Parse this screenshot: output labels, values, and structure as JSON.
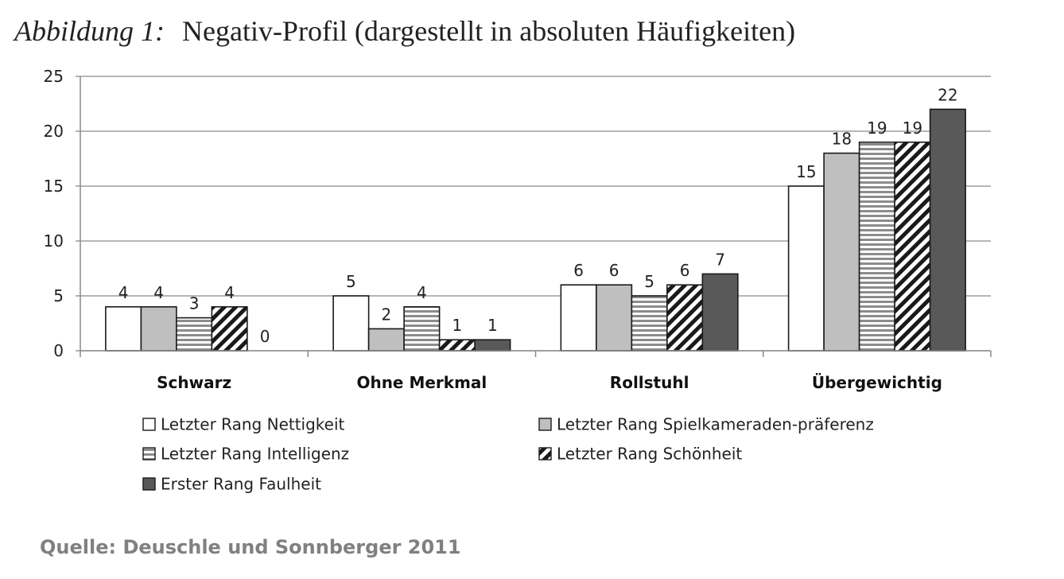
{
  "figure": {
    "label": "Abbildung 1:",
    "title": "Negativ-Profil (dargestellt in absoluten Häufigkeiten)",
    "source": "Quelle: Deuschle und Sonnberger 2011"
  },
  "chart_data": {
    "type": "bar",
    "title": "Negativ-Profil (dargestellt in absoluten Häufigkeiten)",
    "xlabel": "",
    "ylabel": "",
    "ylim": [
      0,
      25
    ],
    "yticks": [
      0,
      5,
      10,
      15,
      20,
      25
    ],
    "grid": true,
    "legend_position": "bottom",
    "categories": [
      "Schwarz",
      "Ohne Merkmal",
      "Rollstuhl",
      "Übergewichtig"
    ],
    "series": [
      {
        "name": "Letzter Rang Nettigkeit",
        "values": [
          4,
          5,
          6,
          15
        ],
        "pattern": "white",
        "color": "#ffffff"
      },
      {
        "name": "Letzter Rang Spielkameraden-präferenz",
        "values": [
          4,
          2,
          6,
          18
        ],
        "pattern": "light-gray",
        "color": "#bfbfbf"
      },
      {
        "name": "Letzter Rang Intelligenz",
        "values": [
          3,
          4,
          5,
          19
        ],
        "pattern": "horizontal-stripes",
        "color": "#8c8c8c"
      },
      {
        "name": "Letzter Rang Schönheit",
        "values": [
          4,
          1,
          6,
          19
        ],
        "pattern": "diagonal-stripes",
        "color": "#1a1a1a"
      },
      {
        "name": "Erster Rang Faulheit",
        "values": [
          0,
          1,
          7,
          22
        ],
        "pattern": "dark-gray",
        "color": "#595959"
      }
    ]
  }
}
